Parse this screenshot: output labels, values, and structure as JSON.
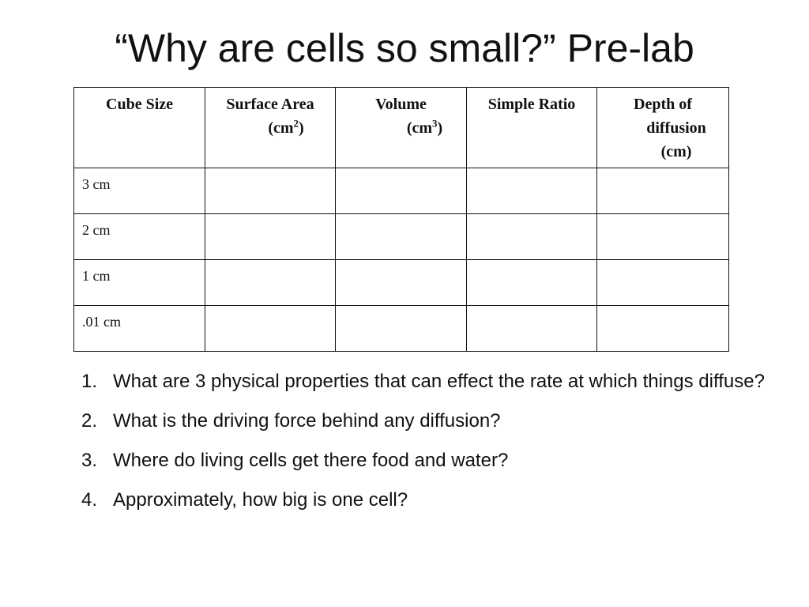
{
  "title": "“Why are cells so small?” Pre-lab",
  "table": {
    "headers": {
      "cube_size": "Cube Size",
      "surface_area": "Surface Area",
      "surface_area_unit_base": "(cm",
      "surface_area_unit_exp": "2",
      "surface_area_unit_close": ")",
      "volume": "Volume",
      "volume_unit_base": "(cm",
      "volume_unit_exp": "3",
      "volume_unit_close": ")",
      "simple_ratio": "Simple Ratio",
      "depth_line1": "Depth of",
      "depth_line2": "diffusion",
      "depth_line3": "(cm)"
    },
    "rows": [
      {
        "cube_size": "3 cm"
      },
      {
        "cube_size": "2 cm"
      },
      {
        "cube_size": "1 cm"
      },
      {
        "cube_size": ".01 cm"
      }
    ]
  },
  "questions": [
    {
      "num": "1.",
      "text": "What are 3 physical properties that can effect the rate at which things diffuse?"
    },
    {
      "num": "2.",
      "text": "What is the driving force behind any diffusion?"
    },
    {
      "num": "3.",
      "text": "Where do living cells get there food and water?"
    },
    {
      "num": "4.",
      "text": "Approximately, how big is one cell?"
    }
  ]
}
